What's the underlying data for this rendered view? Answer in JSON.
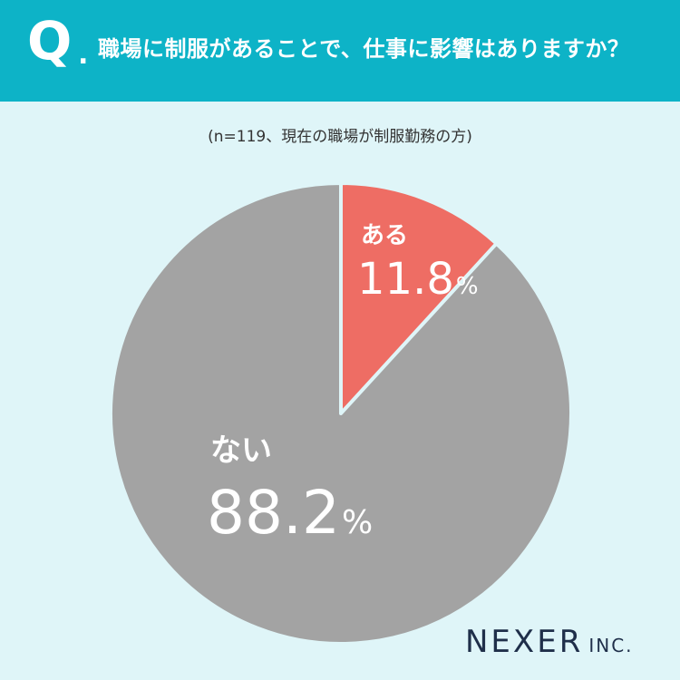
{
  "header": {
    "q_mark": "Q",
    "q_dot": ".",
    "question": "職場に制服があることで、仕事に影響はありますか？"
  },
  "subtitle": "(n=119、現在の職場が制服勤務の方)",
  "chart_data": {
    "type": "pie",
    "start": "12-o'clock, clockwise",
    "slices": [
      {
        "label": "ある",
        "value": 11.8,
        "display": "11.8",
        "unit": "%",
        "color": "#ee6d64"
      },
      {
        "label": "ない",
        "value": 88.2,
        "display": "88.2",
        "unit": "%",
        "color": "#a3a3a3"
      }
    ]
  },
  "logo": {
    "main": "NEXER",
    "sub": "INC."
  }
}
